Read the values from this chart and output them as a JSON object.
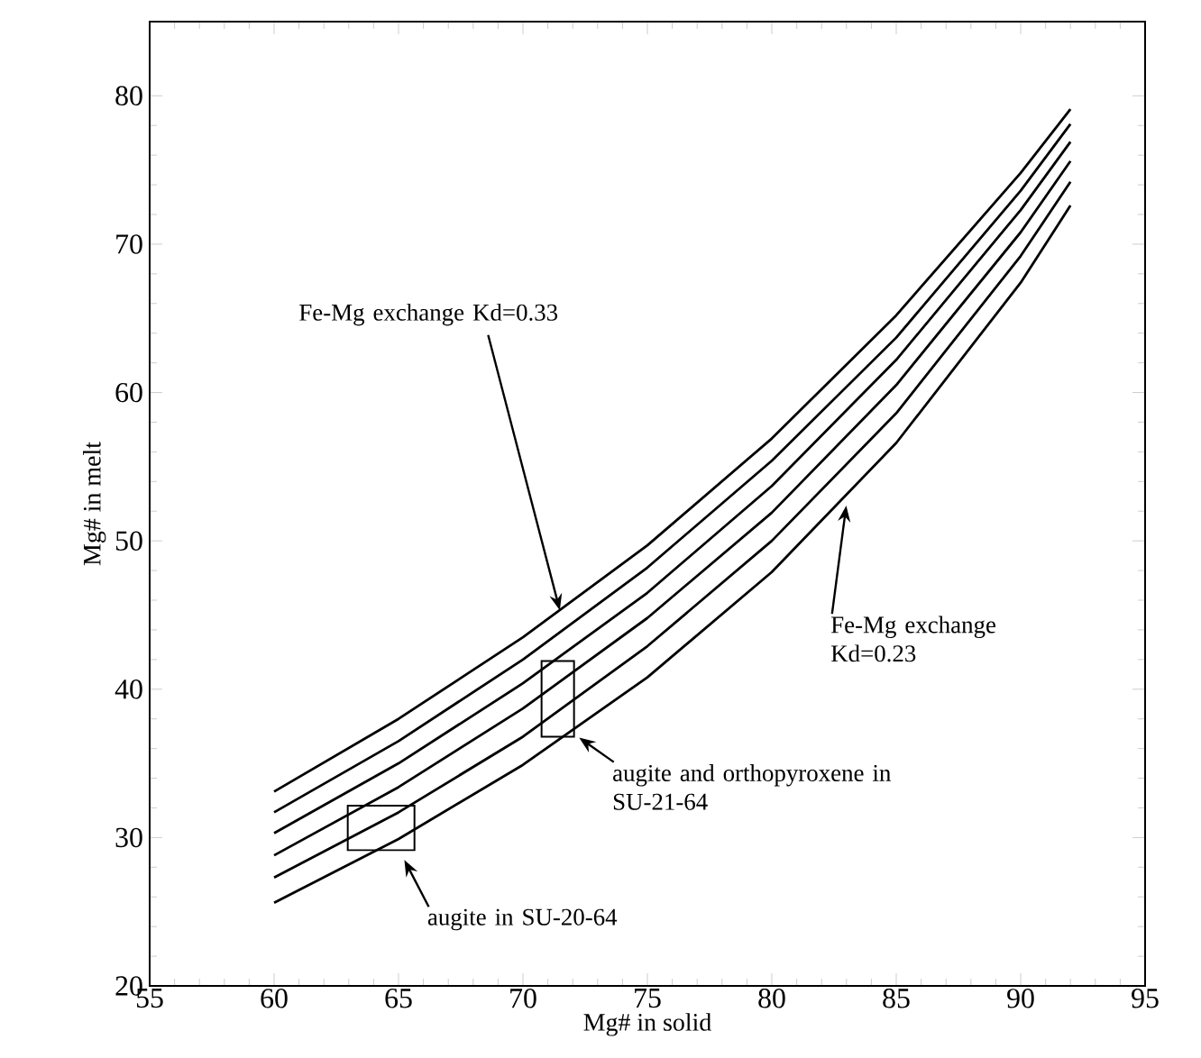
{
  "chart_data": {
    "type": "line",
    "xlabel": "Mg# in solid",
    "ylabel": "Mg# in melt",
    "x": [
      60,
      65,
      70,
      75,
      80,
      85,
      90,
      92
    ],
    "series": [
      {
        "color": "#000000",
        "values": [
          33.1,
          38.0,
          43.5,
          49.7,
          56.9,
          65.2,
          74.8,
          79.1
        ]
      },
      {
        "color": "#000000",
        "values": [
          31.7,
          36.5,
          42.0,
          48.2,
          55.4,
          63.7,
          73.6,
          78.1
        ]
      },
      {
        "color": "#000000",
        "values": [
          30.3,
          35.0,
          40.4,
          46.5,
          53.7,
          62.2,
          72.3,
          76.9
        ]
      },
      {
        "color": "#000000",
        "values": [
          28.8,
          33.4,
          38.7,
          44.8,
          51.9,
          60.5,
          70.8,
          75.6
        ]
      },
      {
        "color": "#000000",
        "values": [
          27.3,
          31.7,
          36.8,
          42.9,
          50.0,
          58.6,
          69.2,
          74.2
        ]
      },
      {
        "color": "#000000",
        "values": [
          25.6,
          29.9,
          34.9,
          40.8,
          47.9,
          56.6,
          67.4,
          72.6
        ]
      },
      {
        "type": "bar",
        "color": "#000000",
        "x": [
          64.3,
          71.4
        ],
        "base": [
          29.15,
          36.8
        ],
        "values": [
          3.0,
          5.1
        ]
      }
    ],
    "xlim": [
      55,
      95
    ],
    "xticks": [
      55,
      60,
      65,
      70,
      75,
      80,
      85,
      90,
      95
    ],
    "ylim": [
      20,
      85
    ],
    "yticks": [
      20,
      30,
      40,
      50,
      60,
      70,
      80
    ],
    "grid": false,
    "marker": "none",
    "line_style": "solid",
    "annotations": [
      {
        "text": "Fe-Mg exchange Kd=0.33",
        "x": 71.5,
        "y": 45.2
      },
      {
        "text": "Fe-Mg exchange Kd=0.23",
        "x": 83,
        "y": 52.5
      },
      "augite and orthopyroxene in SU-21-64",
      "augite in SU-20-64"
    ]
  }
}
